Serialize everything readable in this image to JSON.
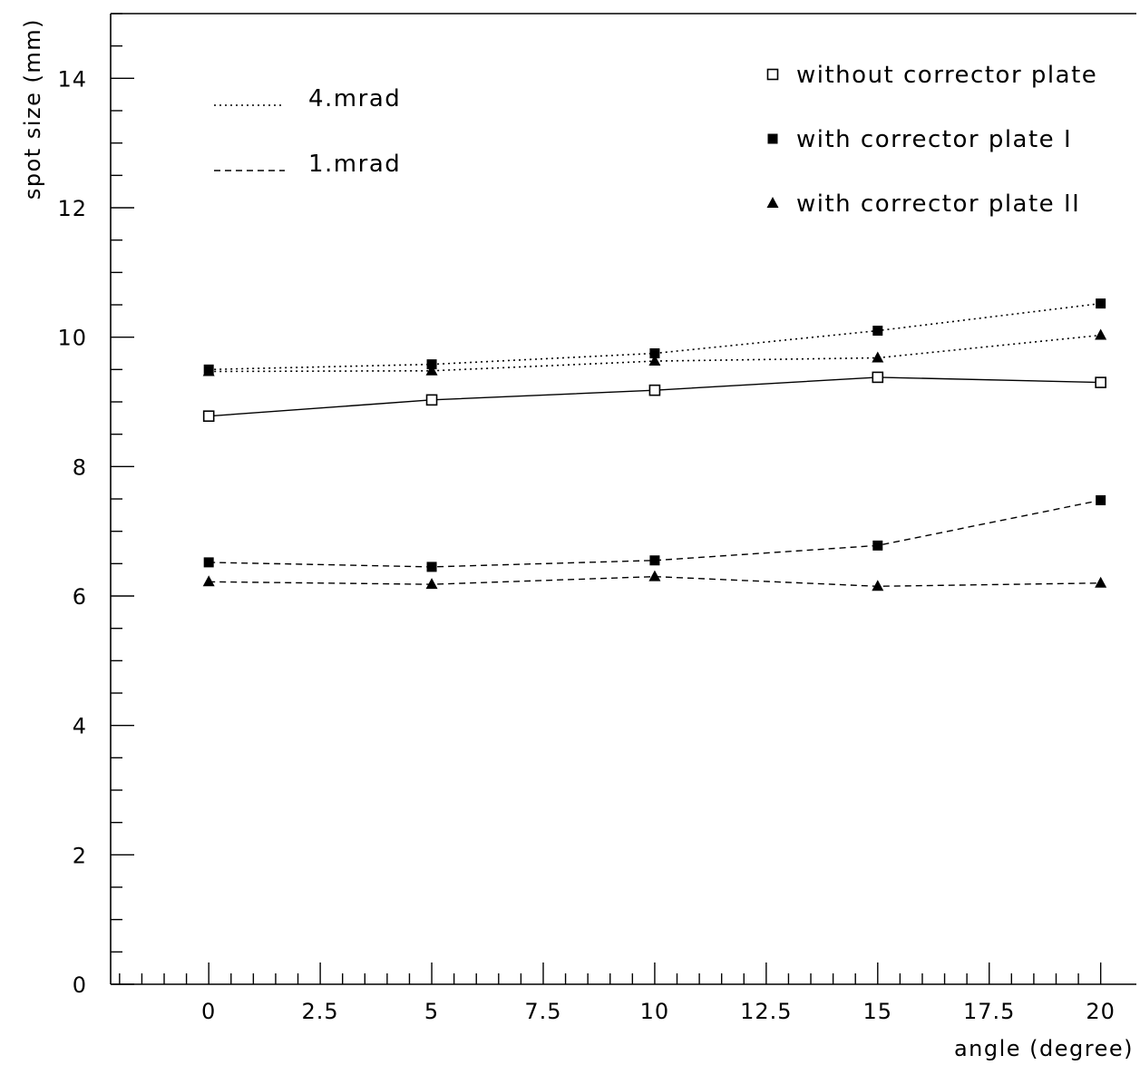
{
  "chart_data": {
    "type": "line",
    "title": "",
    "xlabel": "angle (degree)",
    "ylabel": "spot size (mm)",
    "xlim": [
      -2.2,
      20.8
    ],
    "ylim": [
      0,
      15
    ],
    "x_ticks": [
      "0",
      "2.5",
      "5",
      "7.5",
      "10",
      "12.5",
      "15",
      "17.5",
      "20"
    ],
    "y_ticks": [
      "0",
      "2",
      "4",
      "6",
      "8",
      "10",
      "12",
      "14"
    ],
    "x": [
      0,
      5,
      10,
      15,
      20
    ],
    "line_style_legend": [
      {
        "label": "4.mrad",
        "style": "dotted"
      },
      {
        "label": "1.mrad",
        "style": "dashed"
      }
    ],
    "marker_legend": [
      {
        "label": "without corrector plate",
        "marker": "open-square"
      },
      {
        "label": "with corrector plate I",
        "marker": "filled-square"
      },
      {
        "label": "with corrector plate II",
        "marker": "filled-triangle"
      }
    ],
    "series": [
      {
        "marker": "open-square",
        "line": "solid",
        "values": [
          8.78,
          9.03,
          9.18,
          9.38,
          9.3
        ]
      },
      {
        "marker": "filled-square",
        "line": "dotted",
        "values": [
          9.5,
          9.58,
          9.75,
          10.1,
          10.52
        ]
      },
      {
        "marker": "filled-triangle",
        "line": "dotted",
        "values": [
          9.47,
          9.48,
          9.63,
          9.68,
          10.03
        ]
      },
      {
        "marker": "filled-square",
        "line": "dashed",
        "values": [
          6.52,
          6.45,
          6.55,
          6.78,
          7.48
        ]
      },
      {
        "marker": "filled-triangle",
        "line": "dashed",
        "values": [
          6.22,
          6.18,
          6.3,
          6.15,
          6.2
        ]
      }
    ],
    "grid": false,
    "legend_position": "top"
  },
  "colors": {
    "ink": "#000000",
    "background": "#ffffff"
  }
}
